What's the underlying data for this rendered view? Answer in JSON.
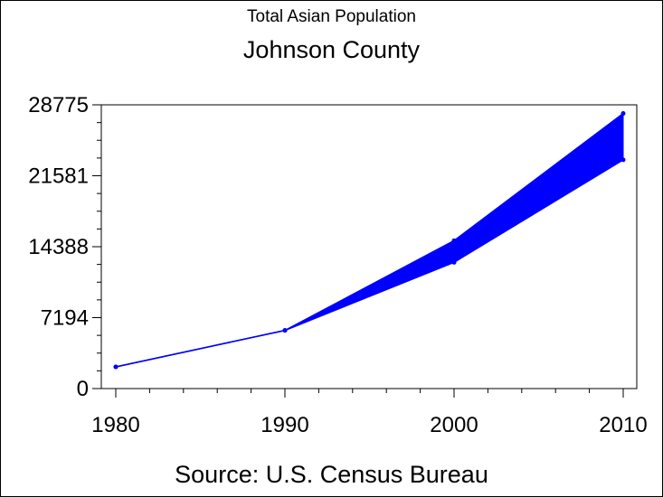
{
  "subtitle": "Total Asian Population",
  "title": "Johnson County",
  "source": "Source: U.S. Census Bureau",
  "colors": {
    "series": "#0000ff",
    "axis": "#000000",
    "background": "#ffffff"
  },
  "chart_data": {
    "type": "area",
    "title": "Johnson County",
    "subtitle": "Total Asian Population",
    "x": [
      1980,
      1990,
      2000,
      2010
    ],
    "x_tick_labels": [
      "1980",
      "1990",
      "2000",
      "2010"
    ],
    "y_tick_values": [
      0,
      7194,
      14388,
      21581,
      28775
    ],
    "y_tick_labels": [
      "0",
      "7194",
      "14388",
      "21581",
      "28775"
    ],
    "xlim": [
      1979,
      2010.8
    ],
    "ylim": [
      0,
      28775
    ],
    "series": [
      {
        "values": [
          2200,
          5900,
          15000,
          27900
        ]
      },
      {
        "values": [
          2200,
          5900,
          12800,
          23200
        ]
      }
    ],
    "fill_between_series": true,
    "grid": false,
    "legend": "none",
    "caption": "Source: U.S. Census Bureau"
  }
}
